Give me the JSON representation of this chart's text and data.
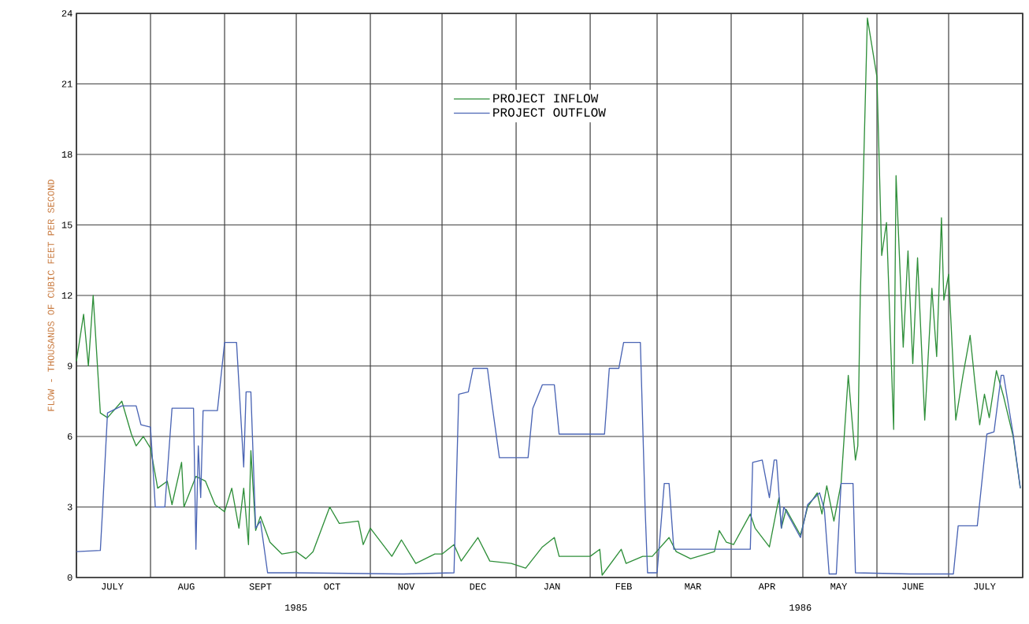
{
  "chart_data": {
    "type": "line",
    "ylabel": "FLOW - THOUSANDS OF CUBIC FEET PER SECOND",
    "annotations": [
      "1985",
      "1986"
    ],
    "xlim": [
      "1985-07-01",
      "1986-08-01"
    ],
    "xticks": [
      {
        "value": "1985-07-01",
        "label": null
      },
      {
        "value": "1985-08-01",
        "label": null
      },
      {
        "value": "1985-09-01",
        "label": null
      },
      {
        "value": "1985-10-01",
        "label": null
      },
      {
        "value": "1985-11-01",
        "label": null
      },
      {
        "value": "1985-12-01",
        "label": null
      },
      {
        "value": "1986-01-01",
        "label": null
      },
      {
        "value": "1986-02-01",
        "label": null
      },
      {
        "value": "1986-03-01",
        "label": null
      },
      {
        "value": "1986-04-01",
        "label": null
      },
      {
        "value": "1986-05-01",
        "label": null
      },
      {
        "value": "1986-06-01",
        "label": null
      },
      {
        "value": "1986-07-01",
        "label": null
      },
      {
        "value": "1986-08-01",
        "label": null
      },
      {
        "value": "1985-07-16",
        "label": "JULY"
      },
      {
        "value": "1985-08-16",
        "label": "AUG"
      },
      {
        "value": "1985-09-16",
        "label": "SEPT"
      },
      {
        "value": "1985-10-16",
        "label": "OCT"
      },
      {
        "value": "1985-11-16",
        "label": "NOV"
      },
      {
        "value": "1985-12-16",
        "label": "DEC"
      },
      {
        "value": "1986-01-16",
        "label": "JAN"
      },
      {
        "value": "1986-02-15",
        "label": "FEB"
      },
      {
        "value": "1986-03-16",
        "label": "MAR"
      },
      {
        "value": "1986-04-16",
        "label": "APR"
      },
      {
        "value": "1986-05-16",
        "label": "MAY"
      },
      {
        "value": "1986-06-16",
        "label": "JUNE"
      },
      {
        "value": "1986-07-16",
        "label": "JULY"
      }
    ],
    "ylim": [
      0,
      24
    ],
    "yticks": [
      0,
      3,
      6,
      9,
      12,
      15,
      18,
      21,
      24
    ],
    "grid": true,
    "legend": "top",
    "series": [
      {
        "name": "PROJECT INFLOW",
        "color": "#2f8f3a",
        "x": [
          "1985-07-01",
          "1985-07-04",
          "1985-07-06",
          "1985-07-08",
          "1985-07-11",
          "1985-07-14",
          "1985-07-20",
          "1985-07-24",
          "1985-07-26",
          "1985-07-29",
          "1985-08-01",
          "1985-08-04",
          "1985-08-08",
          "1985-08-10",
          "1985-08-14",
          "1985-08-15",
          "1985-08-20",
          "1985-08-24",
          "1985-08-28",
          "1985-09-01",
          "1985-09-04",
          "1985-09-07",
          "1985-09-09",
          "1985-09-11",
          "1985-09-12",
          "1985-09-14",
          "1985-09-16",
          "1985-09-20",
          "1985-09-25",
          "1985-10-01",
          "1985-10-05",
          "1985-10-08",
          "1985-10-15",
          "1985-10-19",
          "1985-10-27",
          "1985-10-29",
          "1985-11-01",
          "1985-11-10",
          "1985-11-14",
          "1985-11-20",
          "1985-11-28",
          "1985-12-01",
          "1985-12-06",
          "1985-12-09",
          "1985-12-16",
          "1985-12-21",
          "1985-12-30",
          "1986-01-05",
          "1986-01-12",
          "1986-01-17",
          "1986-01-19",
          "1986-02-01",
          "1986-02-05",
          "1986-02-06",
          "1986-02-14",
          "1986-02-16",
          "1986-02-23",
          "1986-02-27",
          "1986-03-06",
          "1986-03-09",
          "1986-03-15",
          "1986-03-25",
          "1986-03-27",
          "1986-03-30",
          "1986-04-02",
          "1986-04-09",
          "1986-04-11",
          "1986-04-17",
          "1986-04-21",
          "1986-04-22",
          "1986-04-24",
          "1986-04-30",
          "1986-05-03",
          "1986-05-07",
          "1986-05-09",
          "1986-05-11",
          "1986-05-14",
          "1986-05-17",
          "1986-05-20",
          "1986-05-23",
          "1986-05-24",
          "1986-05-25",
          "1986-05-28",
          "1986-06-01",
          "1986-06-03",
          "1986-06-05",
          "1986-06-08",
          "1986-06-09",
          "1986-06-12",
          "1986-06-14",
          "1986-06-16",
          "1986-06-18",
          "1986-06-21",
          "1986-06-24",
          "1986-06-26",
          "1986-06-28",
          "1986-06-29",
          "1986-07-01",
          "1986-07-04",
          "1986-07-07",
          "1986-07-10",
          "1986-07-12",
          "1986-07-14",
          "1986-07-16",
          "1986-07-18",
          "1986-07-21",
          "1986-07-24",
          "1986-07-28",
          "1986-07-31"
        ],
        "values": [
          9.2,
          11.2,
          9.0,
          12.0,
          7.0,
          6.8,
          7.5,
          6.1,
          5.6,
          6.0,
          5.5,
          3.8,
          4.1,
          3.1,
          4.9,
          3.0,
          4.3,
          4.1,
          3.1,
          2.8,
          3.8,
          2.1,
          3.8,
          1.4,
          5.4,
          2.0,
          2.6,
          1.5,
          1.0,
          1.1,
          0.8,
          1.1,
          3.0,
          2.3,
          2.4,
          1.4,
          2.1,
          0.9,
          1.6,
          0.6,
          1.0,
          1.0,
          1.4,
          0.7,
          1.7,
          0.7,
          0.6,
          0.4,
          1.3,
          1.7,
          0.9,
          0.9,
          1.2,
          0.1,
          1.2,
          0.6,
          0.9,
          0.9,
          1.7,
          1.1,
          0.8,
          1.1,
          2.0,
          1.5,
          1.4,
          2.7,
          2.1,
          1.3,
          3.4,
          2.1,
          2.9,
          1.8,
          3.0,
          3.6,
          2.7,
          3.9,
          2.4,
          4.0,
          8.6,
          5.0,
          5.6,
          11.8,
          23.8,
          21.3,
          13.7,
          15.1,
          6.3,
          17.1,
          9.8,
          13.9,
          9.1,
          13.6,
          6.7,
          12.3,
          9.4,
          15.3,
          11.8,
          12.9,
          6.7,
          8.6,
          10.3,
          8.3,
          6.5,
          7.8,
          6.8,
          8.8,
          7.7,
          6.0,
          3.8
        ]
      },
      {
        "name": "PROJECT OUTFLOW",
        "color": "#4a64b4",
        "x": [
          "1985-07-01",
          "1985-07-11",
          "1985-07-12",
          "1985-07-14",
          "1985-07-20",
          "1985-07-26",
          "1985-07-28",
          "1985-08-01",
          "1985-08-03",
          "1985-08-07",
          "1985-08-10",
          "1985-08-19",
          "1985-08-20",
          "1985-08-21",
          "1985-08-22",
          "1985-08-23",
          "1985-08-29",
          "1985-09-01",
          "1985-09-06",
          "1985-09-09",
          "1985-09-10",
          "1985-09-12",
          "1985-09-14",
          "1985-09-16",
          "1985-09-19",
          "1985-10-01",
          "1985-11-15",
          "1985-12-06",
          "1985-12-08",
          "1985-12-12",
          "1985-12-14",
          "1985-12-20",
          "1985-12-22",
          "1985-12-25",
          "1986-01-06",
          "1986-01-08",
          "1986-01-12",
          "1986-01-17",
          "1986-01-19",
          "1986-02-07",
          "1986-02-09",
          "1986-02-13",
          "1986-02-15",
          "1986-02-22",
          "1986-02-24",
          "1986-02-25",
          "1986-03-01",
          "1986-03-04",
          "1986-03-06",
          "1986-03-08",
          "1986-04-09",
          "1986-04-10",
          "1986-04-14",
          "1986-04-17",
          "1986-04-19",
          "1986-04-20",
          "1986-04-22",
          "1986-04-23",
          "1986-04-30",
          "1986-05-03",
          "1986-05-08",
          "1986-05-10",
          "1986-05-12",
          "1986-05-15",
          "1986-05-17",
          "1986-05-22",
          "1986-05-23",
          "1986-06-15",
          "1986-07-03",
          "1986-07-05",
          "1986-07-13",
          "1986-07-17",
          "1986-07-20",
          "1986-07-23",
          "1986-07-24",
          "1986-07-28",
          "1986-07-31"
        ],
        "values": [
          1.1,
          1.15,
          3.0,
          7.0,
          7.3,
          7.3,
          6.5,
          6.4,
          3.0,
          3.0,
          7.2,
          7.2,
          1.2,
          5.6,
          3.4,
          7.1,
          7.1,
          10.0,
          10.0,
          4.7,
          7.9,
          7.9,
          2.1,
          2.4,
          0.2,
          0.2,
          0.15,
          0.2,
          7.8,
          7.9,
          8.9,
          8.9,
          7.3,
          5.1,
          5.1,
          7.2,
          8.2,
          8.2,
          6.1,
          6.1,
          8.9,
          8.9,
          10.0,
          10.0,
          2.9,
          0.2,
          0.2,
          4.0,
          4.0,
          1.2,
          1.2,
          4.9,
          5.0,
          3.4,
          5.0,
          5.0,
          2.1,
          3.0,
          1.7,
          3.1,
          3.6,
          2.9,
          0.15,
          0.15,
          4.0,
          4.0,
          0.2,
          0.15,
          0.15,
          2.2,
          2.2,
          6.1,
          6.2,
          8.6,
          8.6,
          6.1,
          3.8
        ]
      }
    ]
  }
}
